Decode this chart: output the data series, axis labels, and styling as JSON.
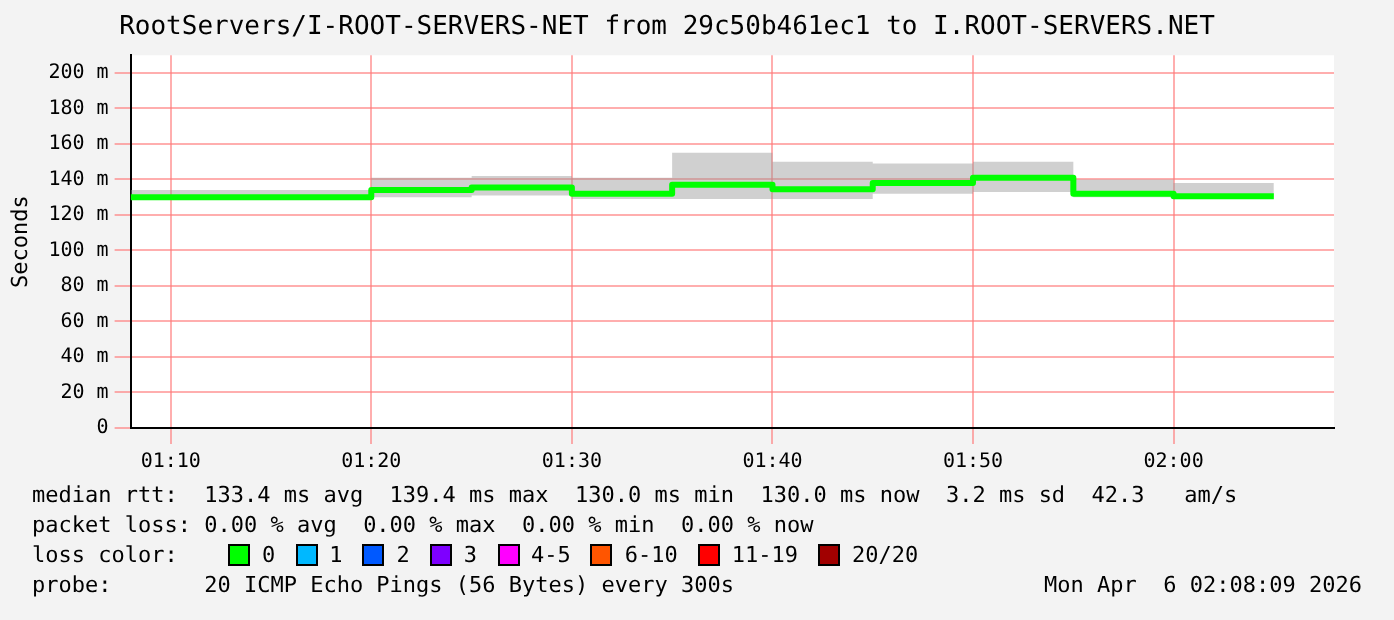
{
  "chart_data": {
    "type": "step",
    "title": "RootServers/I-ROOT-SERVERS-NET from 29c50b461ec1 to I.ROOT-SERVERS.NET",
    "ylabel": "Seconds",
    "x": [
      1.1333,
      1.1667,
      1.25,
      1.3333,
      1.4167,
      1.5,
      1.5833,
      1.6667,
      1.75,
      1.8333,
      1.9167,
      2.0,
      2.0833
    ],
    "xlim": [
      1.1333,
      2.1333
    ],
    "xticks": [
      {
        "value": 1.1667,
        "label": "01:10"
      },
      {
        "value": 1.3333,
        "label": "01:20"
      },
      {
        "value": 1.5,
        "label": "01:30"
      },
      {
        "value": 1.6667,
        "label": "01:40"
      },
      {
        "value": 1.8333,
        "label": "01:50"
      },
      {
        "value": 2.0,
        "label": "02:00"
      }
    ],
    "ylim": [
      0,
      210
    ],
    "yticks": [
      0,
      {
        "value": 20,
        "label": "20 m"
      },
      {
        "value": 40,
        "label": "40 m"
      },
      {
        "value": 60,
        "label": "60 m"
      },
      {
        "value": 80,
        "label": "80 m"
      },
      {
        "value": 100,
        "label": "100 m"
      },
      {
        "value": 120,
        "label": "120 m"
      },
      {
        "value": 140,
        "label": "140 m"
      },
      {
        "value": 160,
        "label": "160 m"
      },
      {
        "value": 180,
        "label": "180 m"
      },
      {
        "value": 200,
        "label": "200 m"
      }
    ],
    "grid": true,
    "legend": "bottom",
    "legend_title": "loss color:",
    "series": [
      {
        "name": "0",
        "color": "#00ff00",
        "values": [
          130,
          130,
          130,
          134,
          135.5,
          132,
          137,
          134.5,
          138,
          141,
          132,
          130.5,
          130.5
        ],
        "lower": [
          129,
          129,
          129,
          130,
          131,
          129,
          129,
          129,
          132,
          133,
          130,
          130,
          130
        ],
        "upper": [
          134,
          134,
          134,
          141,
          142,
          141,
          155,
          150,
          149,
          150,
          140,
          138,
          138
        ]
      },
      {
        "name": "1",
        "color": "#00b8ff",
        "values": [
          null,
          null,
          null,
          null,
          null,
          null,
          null,
          null,
          null,
          null,
          null,
          null,
          null
        ]
      },
      {
        "name": "2",
        "color": "#0059ff",
        "values": [
          null,
          null,
          null,
          null,
          null,
          null,
          null,
          null,
          null,
          null,
          null,
          null,
          null
        ]
      },
      {
        "name": "3",
        "color": "#7e00ff",
        "values": [
          null,
          null,
          null,
          null,
          null,
          null,
          null,
          null,
          null,
          null,
          null,
          null,
          null
        ]
      },
      {
        "name": "4-5",
        "color": "#ff00ff",
        "values": [
          null,
          null,
          null,
          null,
          null,
          null,
          null,
          null,
          null,
          null,
          null,
          null,
          null
        ]
      },
      {
        "name": "6-10",
        "color": "#ff5500",
        "values": [
          null,
          null,
          null,
          null,
          null,
          null,
          null,
          null,
          null,
          null,
          null,
          null,
          null
        ]
      },
      {
        "name": "11-19",
        "color": "#ff0000",
        "values": [
          null,
          null,
          null,
          null,
          null,
          null,
          null,
          null,
          null,
          null,
          null,
          null,
          null
        ]
      },
      {
        "name": "20/20",
        "color": "#a10000",
        "values": [
          null,
          null,
          null,
          null,
          null,
          null,
          null,
          null,
          null,
          null,
          null,
          null,
          null
        ]
      }
    ],
    "annotations": [
      "median rtt:  133.4 ms avg  139.4 ms max  130.0 ms min  130.0 ms now  3.2 ms sd  42.3   am/s",
      "packet loss: 0.00 % avg  0.00 % max  0.00 % min  0.00 % now",
      "probe:       20 ICMP Echo Pings (56 Bytes) every 300s",
      "Mon Apr  6 02:08:09 2026"
    ]
  }
}
